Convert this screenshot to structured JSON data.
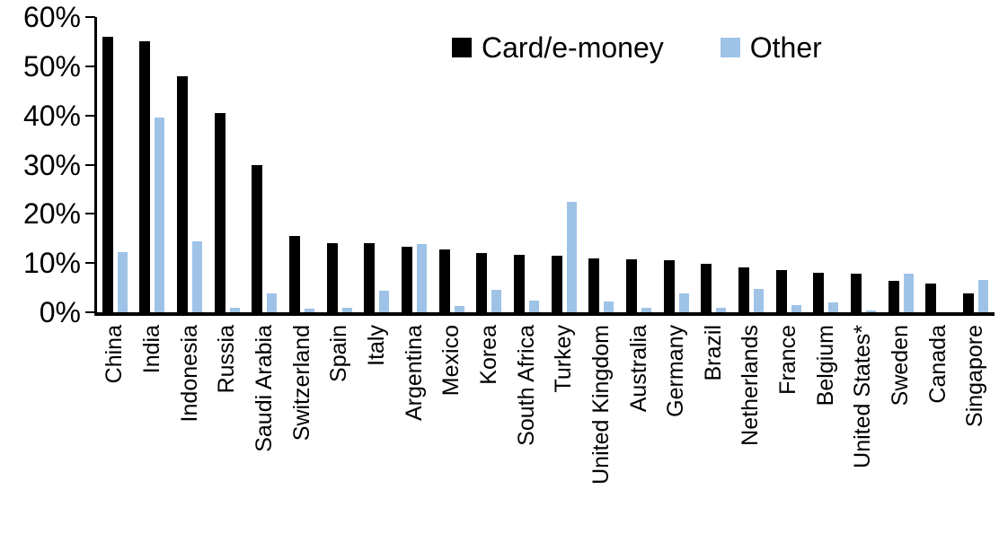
{
  "chart_data": {
    "type": "bar",
    "categories": [
      "China",
      "India",
      "Indonesia",
      "Russia",
      "Saudi Arabia",
      "Switzerland",
      "Spain",
      "Italy",
      "Argentina",
      "Mexico",
      "Korea",
      "South Africa",
      "Turkey",
      "United Kingdom",
      "Australia",
      "Germany",
      "Brazil",
      "Netherlands",
      "France",
      "Belgium",
      "United States*",
      "Sweden",
      "Canada",
      "Singapore"
    ],
    "series": [
      {
        "name": "Card/e-money",
        "color": "#000000",
        "values": [
          56,
          55,
          48,
          40.5,
          30,
          15.5,
          14,
          14,
          13.3,
          12.8,
          12,
          11.7,
          11.5,
          11,
          10.7,
          10.5,
          9.9,
          9.2,
          8.5,
          8,
          7.8,
          6.4,
          5.8,
          3.8
        ]
      },
      {
        "name": "Other",
        "color": "#9EC3E6",
        "values": [
          12.2,
          39.5,
          14.4,
          1,
          3.8,
          0.7,
          1,
          4.4,
          13.8,
          1.3,
          4.5,
          2.3,
          22.4,
          2.2,
          1,
          3.9,
          1,
          4.8,
          1.5,
          2,
          0.3,
          7.9,
          0,
          6.5
        ]
      }
    ],
    "y_ticks": [
      "60%",
      "50%",
      "40%",
      "30%",
      "20%",
      "10%",
      "0%"
    ],
    "ylim": [
      0,
      60
    ],
    "grid": false,
    "legend_position": "top-center",
    "axis_color": "#000000"
  }
}
